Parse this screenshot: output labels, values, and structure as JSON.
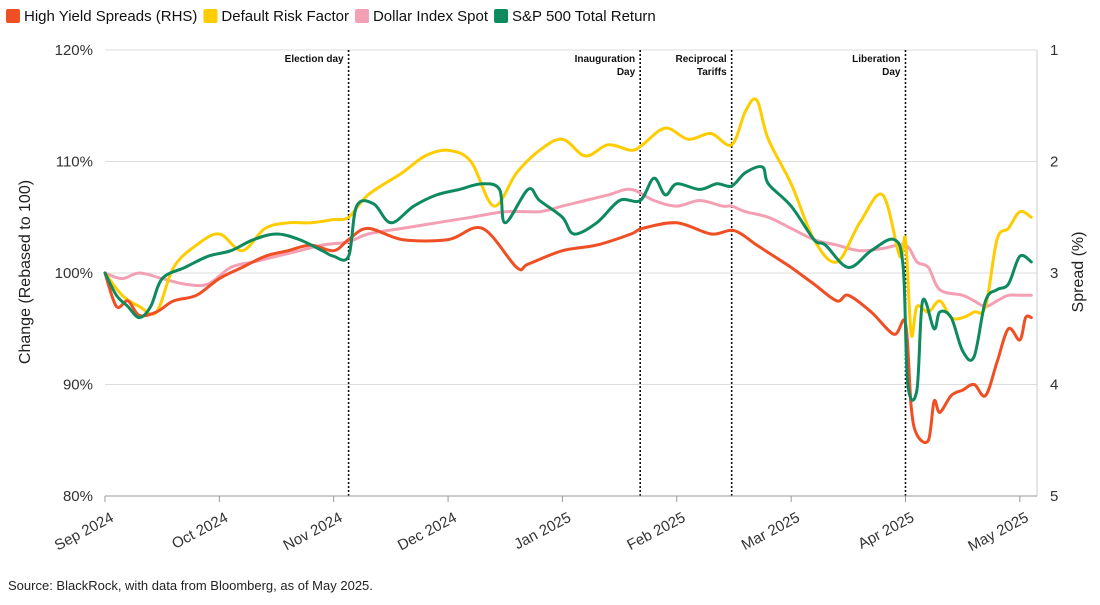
{
  "chart_data": {
    "type": "line",
    "title": "",
    "source": "Source: BlackRock, with data from Bloomberg, as of May 2025.",
    "ylabel": "Change (Rebased to 100)",
    "y2label": "Spread (%)",
    "ylim": [
      80,
      120
    ],
    "y2lim": [
      1,
      5
    ],
    "y2_inverted": true,
    "yticks": [
      80,
      90,
      100,
      110,
      120
    ],
    "ytick_labels": [
      "80%",
      "90%",
      "100%",
      "110%",
      "120%"
    ],
    "y2ticks": [
      1,
      2,
      3,
      4,
      5
    ],
    "y2tick_labels": [
      "1",
      "2",
      "3",
      "4",
      "5"
    ],
    "xlim": [
      0,
      8.15
    ],
    "xticks": [
      0,
      1,
      2,
      3,
      4,
      5,
      6,
      7,
      8
    ],
    "xtick_labels": [
      "Sep 2024",
      "Oct 2024",
      "Nov 2024",
      "Dec 2024",
      "Jan 2025",
      "Feb 2025",
      "Mar 2025",
      "Apr 2025",
      "May 2025"
    ],
    "events": [
      {
        "x": 2.13,
        "lines": [
          "Election day"
        ]
      },
      {
        "x": 4.68,
        "lines": [
          "Inauguration",
          "Day"
        ]
      },
      {
        "x": 5.48,
        "lines": [
          "Reciprocal",
          "Tariffs"
        ]
      },
      {
        "x": 7.0,
        "lines": [
          "Liberation",
          "Day"
        ]
      }
    ],
    "legend_position": "top-left",
    "series": [
      {
        "name": "High Yield Spreads (RHS)",
        "color": "#f04e23",
        "axis": "right",
        "x": [
          0.0,
          0.1,
          0.2,
          0.3,
          0.45,
          0.6,
          0.8,
          1.0,
          1.2,
          1.4,
          1.6,
          1.8,
          2.0,
          2.13,
          2.3,
          2.6,
          3.0,
          3.3,
          3.6,
          3.7,
          4.0,
          4.3,
          4.6,
          4.7,
          5.0,
          5.3,
          5.5,
          5.7,
          5.85,
          6.0,
          6.2,
          6.4,
          6.5,
          6.7,
          6.9,
          7.0,
          7.05,
          7.1,
          7.2,
          7.25,
          7.3,
          7.4,
          7.5,
          7.6,
          7.7,
          7.8,
          7.9,
          8.0,
          8.05,
          8.1
        ],
        "values": [
          3.0,
          3.3,
          3.25,
          3.38,
          3.35,
          3.25,
          3.2,
          3.05,
          2.95,
          2.85,
          2.8,
          2.75,
          2.8,
          2.7,
          2.6,
          2.7,
          2.7,
          2.6,
          2.95,
          2.92,
          2.8,
          2.75,
          2.65,
          2.6,
          2.55,
          2.65,
          2.62,
          2.75,
          2.85,
          2.95,
          3.1,
          3.25,
          3.2,
          3.35,
          3.55,
          3.45,
          4.2,
          4.45,
          4.5,
          4.15,
          4.25,
          4.1,
          4.05,
          4.0,
          4.1,
          3.8,
          3.5,
          3.6,
          3.4,
          3.4
        ]
      },
      {
        "name": "Default Risk Factor",
        "color": "#ffcc00",
        "axis": "left",
        "x": [
          0.0,
          0.15,
          0.3,
          0.45,
          0.6,
          0.8,
          1.0,
          1.2,
          1.4,
          1.6,
          1.8,
          2.0,
          2.13,
          2.3,
          2.6,
          2.8,
          3.0,
          3.2,
          3.4,
          3.6,
          3.8,
          4.0,
          4.2,
          4.4,
          4.6,
          4.7,
          4.9,
          5.1,
          5.3,
          5.48,
          5.6,
          5.7,
          5.8,
          6.0,
          6.2,
          6.4,
          6.6,
          6.8,
          6.95,
          7.0,
          7.05,
          7.1,
          7.2,
          7.3,
          7.4,
          7.5,
          7.6,
          7.7,
          7.8,
          7.9,
          8.0,
          8.1
        ],
        "values": [
          100.0,
          98.0,
          97.0,
          96.5,
          100.5,
          102.5,
          103.5,
          102.0,
          104.0,
          104.5,
          104.5,
          104.8,
          105.0,
          107.0,
          109.0,
          110.5,
          111.0,
          110.0,
          106.0,
          109.0,
          111.0,
          112.0,
          110.5,
          111.5,
          111.0,
          111.5,
          113.0,
          112.0,
          112.5,
          111.5,
          114.5,
          115.5,
          112.0,
          108.0,
          103.0,
          101.0,
          104.5,
          107.0,
          101.5,
          103.0,
          94.5,
          97.0,
          96.5,
          97.5,
          96.0,
          96.0,
          96.5,
          97.0,
          103.0,
          104.0,
          105.5,
          105.0
        ]
      },
      {
        "name": "Dollar Index Spot",
        "color": "#f4a0b4",
        "axis": "left",
        "x": [
          0.0,
          0.15,
          0.3,
          0.5,
          0.7,
          0.9,
          1.1,
          1.3,
          1.5,
          1.7,
          1.9,
          2.13,
          2.3,
          2.6,
          2.9,
          3.2,
          3.5,
          3.8,
          4.0,
          4.2,
          4.4,
          4.6,
          4.8,
          5.0,
          5.2,
          5.4,
          5.48,
          5.6,
          5.8,
          6.0,
          6.2,
          6.4,
          6.6,
          6.8,
          7.0,
          7.1,
          7.2,
          7.3,
          7.5,
          7.6,
          7.7,
          7.8,
          7.9,
          8.0,
          8.1
        ],
        "values": [
          100.0,
          99.5,
          100.0,
          99.5,
          99.0,
          99.0,
          100.5,
          101.0,
          101.5,
          102.0,
          102.5,
          102.8,
          103.5,
          104.0,
          104.5,
          105.0,
          105.5,
          105.5,
          106.0,
          106.5,
          107.0,
          107.5,
          106.5,
          106.0,
          106.5,
          106.0,
          106.0,
          105.5,
          105.0,
          104.0,
          103.0,
          102.5,
          102.0,
          102.2,
          102.5,
          101.0,
          100.5,
          98.5,
          98.0,
          97.5,
          97.0,
          97.5,
          98.0,
          98.0,
          98.0
        ]
      },
      {
        "name": "S&P 500 Total Return",
        "color": "#0e8a5f",
        "axis": "left",
        "x": [
          0.0,
          0.1,
          0.2,
          0.3,
          0.4,
          0.5,
          0.7,
          0.9,
          1.1,
          1.3,
          1.5,
          1.7,
          1.9,
          2.0,
          2.13,
          2.2,
          2.35,
          2.5,
          2.7,
          2.9,
          3.1,
          3.3,
          3.45,
          3.5,
          3.7,
          3.8,
          4.0,
          4.1,
          4.3,
          4.5,
          4.68,
          4.8,
          4.9,
          5.0,
          5.2,
          5.35,
          5.48,
          5.6,
          5.75,
          5.8,
          6.0,
          6.2,
          6.3,
          6.5,
          6.7,
          6.9,
          6.98,
          7.02,
          7.1,
          7.15,
          7.25,
          7.3,
          7.4,
          7.5,
          7.6,
          7.7,
          7.8,
          7.9,
          8.0,
          8.1
        ],
        "values": [
          100.0,
          98.0,
          97.0,
          96.0,
          97.0,
          99.5,
          100.5,
          101.5,
          102.0,
          103.0,
          103.5,
          103.0,
          102.0,
          101.5,
          101.5,
          106.0,
          106.2,
          104.5,
          106.0,
          107.0,
          107.5,
          108.0,
          107.5,
          104.5,
          107.5,
          106.5,
          105.0,
          103.5,
          104.5,
          106.5,
          106.5,
          108.5,
          107.0,
          108.0,
          107.5,
          108.0,
          107.8,
          109.0,
          109.5,
          108.0,
          106.0,
          103.0,
          102.5,
          100.5,
          102.0,
          103.0,
          100.5,
          90.0,
          89.5,
          97.5,
          95.0,
          96.5,
          96.0,
          93.0,
          92.5,
          97.5,
          98.5,
          99.0,
          101.5,
          101.0
        ]
      }
    ]
  }
}
